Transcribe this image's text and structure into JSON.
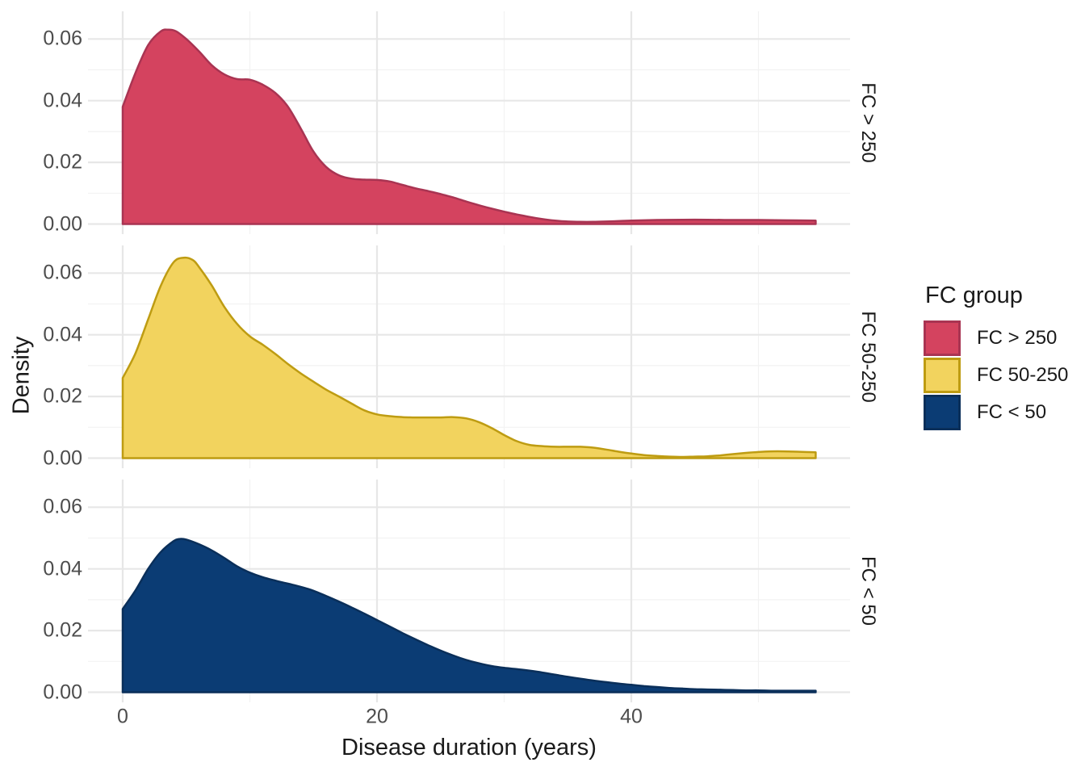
{
  "figure": {
    "xlabel": "Disease duration (years)",
    "ylabel": "Density"
  },
  "legend": {
    "title": "FC group",
    "entries": [
      {
        "label": "FC > 250",
        "fill": "#D4435F",
        "stroke": "#A93452"
      },
      {
        "label": "FC 50-250",
        "fill": "#F2D35E",
        "stroke": "#BE9C12"
      },
      {
        "label": "FC < 50",
        "fill": "#0B3C74",
        "stroke": "#0A2F5A"
      }
    ]
  },
  "chart_data": {
    "type": "area",
    "variant": "faceted-density",
    "title": "",
    "xlabel": "Disease duration (years)",
    "ylabel": "Density",
    "legend_title": "FC group",
    "legend_position": "right",
    "grid": true,
    "xlim": [
      -2.7,
      57.3
    ],
    "ylim": [
      -0.0034,
      0.0688
    ],
    "x_ticks": {
      "major": [
        0,
        20,
        40
      ],
      "minor": [
        10,
        30,
        50
      ],
      "labels": [
        "0",
        "20",
        "40"
      ]
    },
    "y_ticks": {
      "major": [
        0,
        0.02,
        0.04,
        0.06
      ],
      "minor": [
        0.01,
        0.03,
        0.05
      ],
      "labels": [
        "0.00",
        "0.02",
        "0.04",
        "0.06"
      ]
    },
    "grid_major_color": "#e7e7e7",
    "grid_minor_color": "#f2f2f2",
    "facets": [
      {
        "label": "FC > 250",
        "fill": "#D4435F",
        "stroke": "#A93452",
        "points": [
          [
            0,
            0.038
          ],
          [
            1,
            0.049
          ],
          [
            2,
            0.058
          ],
          [
            3,
            0.0625
          ],
          [
            3.6,
            0.063
          ],
          [
            4.2,
            0.0625
          ],
          [
            5,
            0.06
          ],
          [
            6,
            0.056
          ],
          [
            7,
            0.0515
          ],
          [
            8,
            0.0485
          ],
          [
            9,
            0.047
          ],
          [
            10,
            0.0468
          ],
          [
            11,
            0.0452
          ],
          [
            12,
            0.0425
          ],
          [
            13,
            0.038
          ],
          [
            14,
            0.031
          ],
          [
            15,
            0.0235
          ],
          [
            16,
            0.0185
          ],
          [
            17,
            0.0158
          ],
          [
            18,
            0.0147
          ],
          [
            19,
            0.0144
          ],
          [
            20,
            0.0143
          ],
          [
            21,
            0.0138
          ],
          [
            22,
            0.0127
          ],
          [
            23,
            0.0116
          ],
          [
            24,
            0.0107
          ],
          [
            25,
            0.0097
          ],
          [
            26,
            0.0086
          ],
          [
            27,
            0.0073
          ],
          [
            28,
            0.0061
          ],
          [
            29,
            0.005
          ],
          [
            30,
            0.004
          ],
          [
            31,
            0.0031
          ],
          [
            32,
            0.0023
          ],
          [
            33,
            0.0016
          ],
          [
            34,
            0.0011
          ],
          [
            35,
            0.0008
          ],
          [
            36,
            0.0007
          ],
          [
            37,
            0.0007
          ],
          [
            38,
            0.0008
          ],
          [
            40,
            0.0011
          ],
          [
            42,
            0.0013
          ],
          [
            44,
            0.0014
          ],
          [
            46,
            0.0014
          ],
          [
            48,
            0.0013
          ],
          [
            50,
            0.0013
          ],
          [
            52,
            0.0012
          ],
          [
            54.5,
            0.0011
          ]
        ]
      },
      {
        "label": "FC 50-250",
        "fill": "#F2D35E",
        "stroke": "#BE9C12",
        "points": [
          [
            0,
            0.026
          ],
          [
            1,
            0.034
          ],
          [
            2,
            0.045
          ],
          [
            3,
            0.056
          ],
          [
            4,
            0.0635
          ],
          [
            4.8,
            0.065
          ],
          [
            5.5,
            0.0643
          ],
          [
            6,
            0.062
          ],
          [
            7,
            0.056
          ],
          [
            8,
            0.049
          ],
          [
            9,
            0.0435
          ],
          [
            10,
            0.0395
          ],
          [
            11,
            0.0368
          ],
          [
            12,
            0.0338
          ],
          [
            13,
            0.0305
          ],
          [
            14,
            0.0275
          ],
          [
            15,
            0.0248
          ],
          [
            16,
            0.0222
          ],
          [
            17,
            0.02
          ],
          [
            18,
            0.0177
          ],
          [
            19,
            0.0155
          ],
          [
            20,
            0.0142
          ],
          [
            21,
            0.0136
          ],
          [
            22,
            0.0133
          ],
          [
            23,
            0.0132
          ],
          [
            24,
            0.0132
          ],
          [
            25,
            0.0132
          ],
          [
            26,
            0.0133
          ],
          [
            27,
            0.0129
          ],
          [
            28,
            0.0117
          ],
          [
            29,
            0.0098
          ],
          [
            30,
            0.0075
          ],
          [
            31,
            0.0055
          ],
          [
            32,
            0.0043
          ],
          [
            33,
            0.0039
          ],
          [
            34,
            0.0037
          ],
          [
            35,
            0.0037
          ],
          [
            36,
            0.0037
          ],
          [
            37,
            0.0034
          ],
          [
            38,
            0.0028
          ],
          [
            39,
            0.0021
          ],
          [
            40,
            0.0015
          ],
          [
            41,
            0.001
          ],
          [
            42,
            0.0007
          ],
          [
            43,
            0.0005
          ],
          [
            44,
            0.0004
          ],
          [
            45,
            0.0005
          ],
          [
            46,
            0.0006
          ],
          [
            47,
            0.0009
          ],
          [
            48,
            0.0013
          ],
          [
            49,
            0.0017
          ],
          [
            50,
            0.002
          ],
          [
            51,
            0.0022
          ],
          [
            52,
            0.0022
          ],
          [
            53,
            0.0021
          ],
          [
            54.5,
            0.0019
          ]
        ]
      },
      {
        "label": "FC < 50",
        "fill": "#0B3C74",
        "stroke": "#0A2F5A",
        "points": [
          [
            0,
            0.027
          ],
          [
            1,
            0.033
          ],
          [
            2,
            0.04
          ],
          [
            3,
            0.0455
          ],
          [
            4,
            0.049
          ],
          [
            4.5,
            0.0497
          ],
          [
            5,
            0.0495
          ],
          [
            6,
            0.048
          ],
          [
            7,
            0.046
          ],
          [
            8,
            0.0435
          ],
          [
            9,
            0.0408
          ],
          [
            10,
            0.0388
          ],
          [
            11,
            0.0373
          ],
          [
            12,
            0.0362
          ],
          [
            13,
            0.0352
          ],
          [
            14,
            0.0342
          ],
          [
            15,
            0.0329
          ],
          [
            16,
            0.0312
          ],
          [
            17,
            0.0294
          ],
          [
            18,
            0.0275
          ],
          [
            19,
            0.0255
          ],
          [
            20,
            0.0234
          ],
          [
            21,
            0.0213
          ],
          [
            22,
            0.0192
          ],
          [
            23,
            0.0172
          ],
          [
            24,
            0.0153
          ],
          [
            25,
            0.0135
          ],
          [
            26,
            0.0119
          ],
          [
            27,
            0.0105
          ],
          [
            28,
            0.0094
          ],
          [
            29,
            0.0085
          ],
          [
            30,
            0.0079
          ],
          [
            31,
            0.0075
          ],
          [
            32,
            0.007
          ],
          [
            33,
            0.0064
          ],
          [
            34,
            0.0057
          ],
          [
            35,
            0.005
          ],
          [
            36,
            0.0044
          ],
          [
            37,
            0.0038
          ],
          [
            38,
            0.0033
          ],
          [
            39,
            0.0028
          ],
          [
            40,
            0.0024
          ],
          [
            41,
            0.002
          ],
          [
            42,
            0.0017
          ],
          [
            43,
            0.0014
          ],
          [
            44,
            0.0012
          ],
          [
            45,
            0.001
          ],
          [
            46,
            0.0009
          ],
          [
            47,
            0.0008
          ],
          [
            48,
            0.0007
          ],
          [
            49,
            0.0006
          ],
          [
            50,
            0.0006
          ],
          [
            51,
            0.0005
          ],
          [
            52,
            0.0005
          ],
          [
            53,
            0.0005
          ],
          [
            54.5,
            0.0005
          ]
        ]
      }
    ]
  }
}
